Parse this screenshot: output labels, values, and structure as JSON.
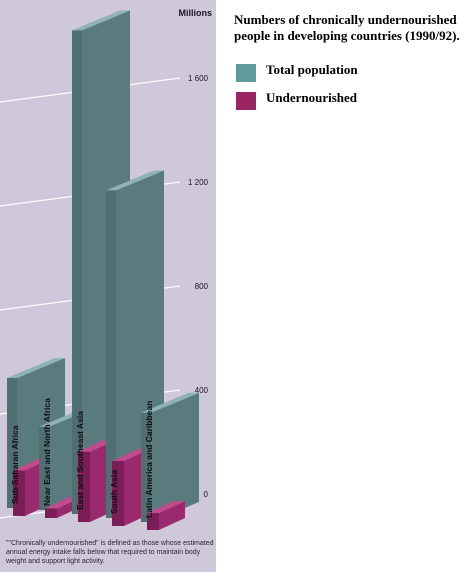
{
  "colors": {
    "background": "#cfc8da",
    "total_front": "#4f6f70",
    "total_side": "#5a7b7d",
    "total_top": "#8fb2b4",
    "under_front": "#7b1d56",
    "under_side": "#9a2a6d",
    "under_top": "#c04c8e",
    "teal_swatch": "#5f9a9c",
    "magenta_swatch": "#9a2563"
  },
  "legend": {
    "title": "Numbers of chronically undernourished people in developing countries (1990/92).",
    "items": [
      {
        "label": "Total population",
        "color": "#5f9a9c"
      },
      {
        "label": "Undernourished",
        "color": "#9a2563"
      }
    ]
  },
  "footnote": "\"\"Chronically undernourished\" is defined as those whose estimated annual energy intake falls below that required to maintain body weight and support light activity.",
  "chart_data": {
    "type": "bar",
    "unit_label": "Millions",
    "ylim": [
      0,
      1800
    ],
    "yticks": [
      0,
      400,
      800,
      1200,
      1600
    ],
    "ytick_labels": [
      "0",
      "400",
      "800",
      "1 200",
      "1 600"
    ],
    "categories": [
      "Sub-Saharan Africa",
      "Near East and North Africa",
      "East and Southeast Asia",
      "South Asia",
      "Latin America and Caribbean"
    ],
    "series": [
      {
        "name": "Total population",
        "values": [
          500,
          320,
          1860,
          1260,
          420
        ]
      },
      {
        "name": "Undernourished",
        "values": [
          175,
          37,
          270,
          250,
          65
        ]
      }
    ]
  }
}
